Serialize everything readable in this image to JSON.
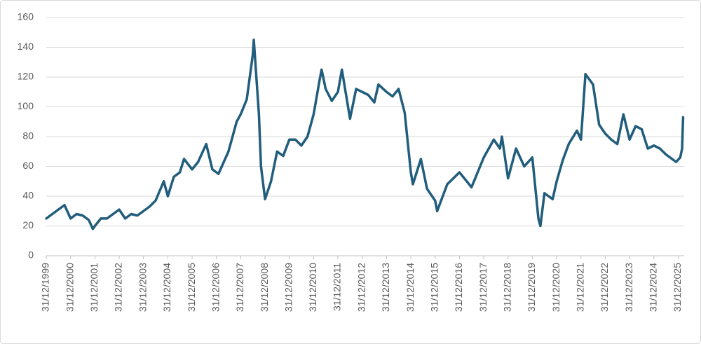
{
  "chart_data": {
    "type": "line",
    "x": [
      "31/12/1999",
      "31/03/2000",
      "30/06/2000",
      "30/09/2000",
      "31/12/2000",
      "31/03/2001",
      "30/06/2001",
      "30/09/2001",
      "30/11/2001",
      "31/12/2001",
      "31/03/2002",
      "30/06/2002",
      "30/09/2002",
      "31/12/2002",
      "31/03/2003",
      "30/06/2003",
      "30/09/2003",
      "31/12/2003",
      "31/03/2004",
      "30/06/2004",
      "31/10/2004",
      "31/12/2004",
      "31/03/2005",
      "30/06/2005",
      "31/08/2005",
      "31/12/2005",
      "31/03/2006",
      "31/07/2006",
      "31/10/2006",
      "31/01/2007",
      "30/06/2007",
      "31/10/2007",
      "31/12/2007",
      "31/03/2008",
      "30/06/2008",
      "15/07/2008",
      "30/09/2008",
      "31/10/2008",
      "31/12/2008",
      "31/03/2009",
      "30/06/2009",
      "30/09/2009",
      "31/12/2009",
      "31/03/2010",
      "30/06/2010",
      "30/09/2010",
      "31/12/2010",
      "31/03/2011",
      "30/04/2011",
      "30/06/2011",
      "30/09/2011",
      "31/12/2011",
      "29/02/2012",
      "30/06/2012",
      "30/09/2012",
      "31/12/2012",
      "31/03/2013",
      "30/06/2013",
      "31/08/2013",
      "31/12/2013",
      "31/03/2014",
      "30/06/2014",
      "30/09/2014",
      "31/12/2014",
      "31/01/2015",
      "31/05/2015",
      "31/08/2015",
      "31/12/2015",
      "31/01/2016",
      "30/06/2016",
      "31/12/2016",
      "30/06/2017",
      "31/12/2017",
      "31/05/2018",
      "31/08/2018",
      "30/09/2018",
      "31/12/2018",
      "30/04/2019",
      "31/08/2019",
      "31/12/2019",
      "31/03/2020",
      "30/04/2020",
      "30/06/2020",
      "31/10/2020",
      "31/12/2020",
      "31/03/2021",
      "30/06/2021",
      "31/10/2021",
      "31/12/2021",
      "08/03/2022",
      "30/06/2022",
      "30/09/2022",
      "31/12/2022",
      "31/03/2023",
      "30/06/2023",
      "30/09/2023",
      "31/12/2023",
      "31/03/2024",
      "30/06/2024",
      "30/09/2024",
      "31/12/2024",
      "31/03/2025",
      "30/06/2025",
      "30/11/2025",
      "31/01/2026",
      "28/02/2026",
      "15/03/2026"
    ],
    "values": [
      25,
      28,
      31,
      34,
      25,
      28,
      27,
      24,
      18,
      20,
      25,
      25,
      28,
      31,
      25,
      28,
      27,
      30,
      33,
      37,
      50,
      40,
      53,
      56,
      65,
      58,
      63,
      75,
      58,
      55,
      70,
      90,
      95,
      105,
      135,
      145,
      95,
      60,
      38,
      50,
      70,
      67,
      78,
      78,
      74,
      80,
      95,
      118,
      125,
      112,
      104,
      110,
      125,
      92,
      112,
      110,
      108,
      103,
      115,
      110,
      107,
      112,
      96,
      56,
      48,
      65,
      45,
      37,
      30,
      48,
      56,
      46,
      66,
      78,
      72,
      80,
      52,
      72,
      60,
      66,
      25,
      20,
      42,
      38,
      50,
      64,
      75,
      84,
      78,
      122,
      115,
      88,
      82,
      78,
      75,
      95,
      78,
      87,
      85,
      72,
      74,
      72,
      68,
      63,
      66,
      72,
      93
    ],
    "color": "#215d7c",
    "xlim": [
      "31/12/1999",
      "31/03/2026"
    ],
    "xticks": [
      "31/12/1999",
      "31/12/2000",
      "31/12/2001",
      "31/12/2002",
      "31/12/2003",
      "31/12/2004",
      "31/12/2005",
      "31/12/2006",
      "31/12/2007",
      "31/12/2008",
      "31/12/2009",
      "31/12/2010",
      "31/12/2011",
      "31/12/2012",
      "31/12/2013",
      "31/12/2014",
      "31/12/2015",
      "31/12/2016",
      "31/12/2017",
      "31/12/2018",
      "31/12/2019",
      "31/12/2020",
      "31/12/2021",
      "31/12/2022",
      "31/12/2023",
      "31/12/2024",
      "31/12/2025"
    ],
    "ylim": [
      0,
      160
    ],
    "yticks": [
      0,
      20,
      40,
      60,
      80,
      100,
      120,
      140,
      160
    ],
    "grid": true
  }
}
